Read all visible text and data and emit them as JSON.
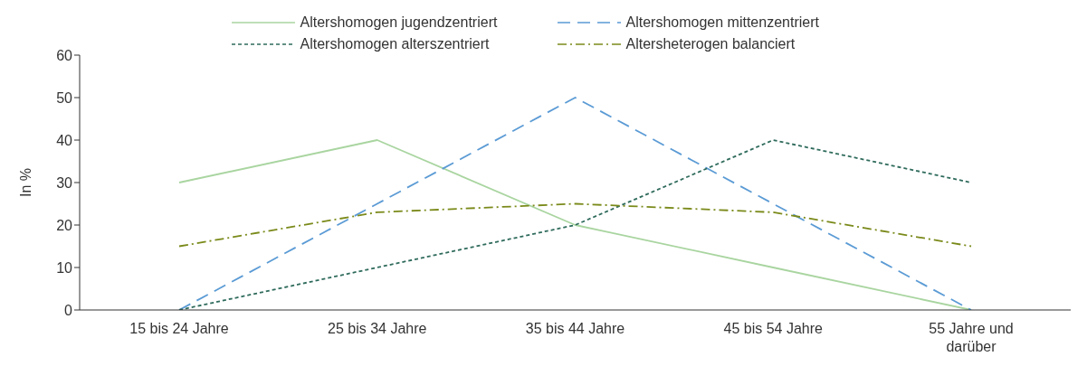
{
  "chart_data": {
    "type": "line",
    "ylabel": "In %",
    "categories": [
      "15 bis 24 Jahre",
      "25 bis 34 Jahre",
      "35 bis 44 Jahre",
      "45 bis 54 Jahre",
      "55 Jahre und darüber"
    ],
    "series": [
      {
        "name": "Altershomogen jugendzentriert",
        "color": "#a9d5a0",
        "line_style": "solid",
        "values": [
          30,
          40,
          20,
          10,
          0
        ]
      },
      {
        "name": "Altershomogen mittenzentriert",
        "color": "#5b9bd5",
        "line_style": "dashed",
        "values": [
          0,
          25,
          50,
          25,
          0
        ]
      },
      {
        "name": "Altershomogen alterszentriert",
        "color": "#2f6b5c",
        "line_style": "dotted",
        "values": [
          0,
          10,
          20,
          40,
          30
        ]
      },
      {
        "name": "Altersheterogen balanciert",
        "color": "#7b8a1a",
        "line_style": "dashdot",
        "values": [
          15,
          23,
          25,
          23,
          15
        ]
      }
    ],
    "ylim": [
      0,
      60
    ],
    "yticks": [
      0,
      10,
      20,
      30,
      40,
      50,
      60
    ],
    "grid": false,
    "legend": "top",
    "marker": "none"
  }
}
